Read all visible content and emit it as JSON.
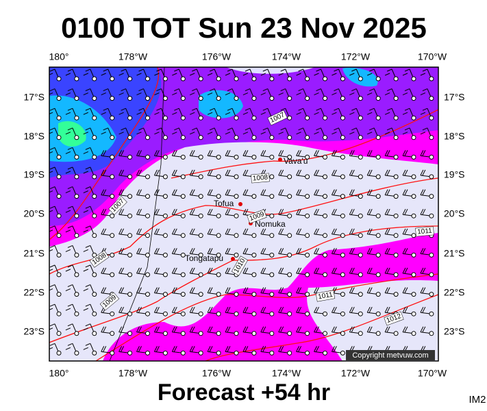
{
  "header": {
    "title": "0100 TOT Sun 23 Nov 2025"
  },
  "map": {
    "longitude_labels": [
      "180°",
      "178°W",
      "176°W",
      "174°W",
      "172°W",
      "170°W"
    ],
    "latitude_labels": [
      "17°S",
      "18°S",
      "19°S",
      "20°S",
      "21°S",
      "22°S",
      "23°S"
    ],
    "places": [
      "Vava'u",
      "Tofua",
      "Nomuka",
      "Tongatapu"
    ],
    "isobar_labels": [
      1007,
      1008,
      1007,
      1009,
      1008,
      1010,
      1011,
      1009,
      1011,
      1012
    ],
    "copyright": "Copyright metvuw.com"
  },
  "footer": {
    "forecast": "Forecast +54 hr",
    "image_id": "IM2"
  }
}
